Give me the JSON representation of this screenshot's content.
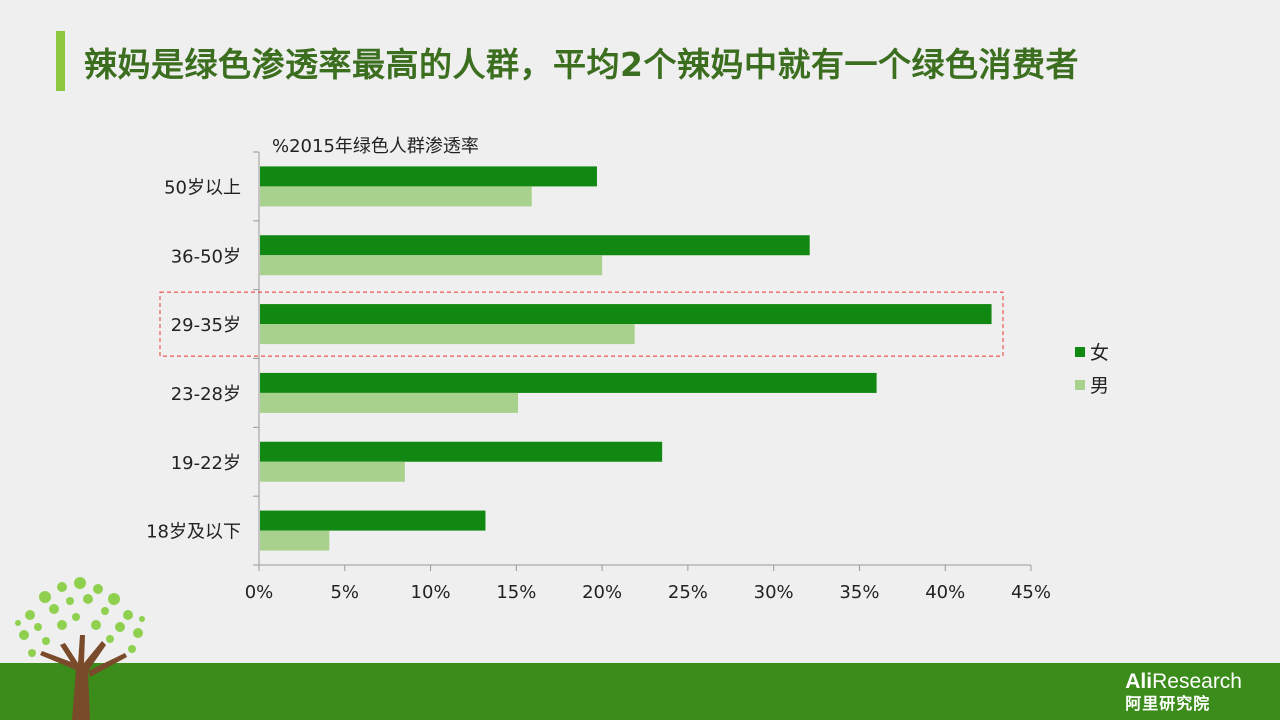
{
  "page": {
    "title": "辣妈是绿色渗透率最高的人群，平均2个辣妈中就有一个绿色消费者"
  },
  "colors": {
    "female": "#118811",
    "male": "#a9d18e",
    "title": "#3c6e1f",
    "accent": "#8dc63f",
    "footer": "#3b8c1b",
    "highlight": "#e8382c"
  },
  "chart_data": {
    "type": "bar",
    "orientation": "horizontal",
    "title": "%2015年绿色人群渗透率",
    "categories": [
      "50岁以上",
      "36-50岁",
      "29-35岁",
      "23-28岁",
      "19-22岁",
      "18岁及以下"
    ],
    "series": [
      {
        "name": "女",
        "values": [
          19.7,
          32.1,
          42.7,
          36.0,
          23.5,
          13.2
        ]
      },
      {
        "name": "男",
        "values": [
          15.9,
          20.0,
          21.9,
          15.1,
          8.5,
          4.1
        ]
      }
    ],
    "xlim": [
      0,
      45
    ],
    "xticks": [
      "0%",
      "5%",
      "10%",
      "15%",
      "20%",
      "25%",
      "30%",
      "35%",
      "40%",
      "45%"
    ],
    "xtick_step": 5,
    "highlighted_category": "29-35岁",
    "legend_position": "right",
    "grid": false
  },
  "footer": {
    "logo_brand_bold": "Ali",
    "logo_brand": "Research",
    "logo_sub": "阿里研究院"
  }
}
